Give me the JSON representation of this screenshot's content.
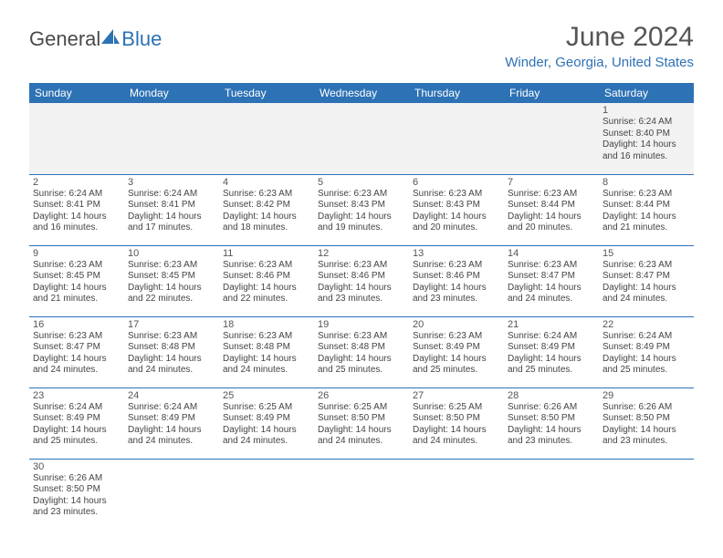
{
  "logo": {
    "part1": "General",
    "part2": "Blue"
  },
  "title": "June 2024",
  "location": "Winder, Georgia, United States",
  "colors": {
    "header_bg": "#2d72b5",
    "header_fg": "#ffffff",
    "accent": "#2d72b5",
    "grid_border": "#2d72b5",
    "first_row_bg": "#f2f2f2",
    "text": "#444444"
  },
  "weekdays": [
    "Sunday",
    "Monday",
    "Tuesday",
    "Wednesday",
    "Thursday",
    "Friday",
    "Saturday"
  ],
  "days": {
    "1": {
      "sr": "6:24 AM",
      "ss": "8:40 PM",
      "dl": "14 hours and 16 minutes."
    },
    "2": {
      "sr": "6:24 AM",
      "ss": "8:41 PM",
      "dl": "14 hours and 16 minutes."
    },
    "3": {
      "sr": "6:24 AM",
      "ss": "8:41 PM",
      "dl": "14 hours and 17 minutes."
    },
    "4": {
      "sr": "6:23 AM",
      "ss": "8:42 PM",
      "dl": "14 hours and 18 minutes."
    },
    "5": {
      "sr": "6:23 AM",
      "ss": "8:43 PM",
      "dl": "14 hours and 19 minutes."
    },
    "6": {
      "sr": "6:23 AM",
      "ss": "8:43 PM",
      "dl": "14 hours and 20 minutes."
    },
    "7": {
      "sr": "6:23 AM",
      "ss": "8:44 PM",
      "dl": "14 hours and 20 minutes."
    },
    "8": {
      "sr": "6:23 AM",
      "ss": "8:44 PM",
      "dl": "14 hours and 21 minutes."
    },
    "9": {
      "sr": "6:23 AM",
      "ss": "8:45 PM",
      "dl": "14 hours and 21 minutes."
    },
    "10": {
      "sr": "6:23 AM",
      "ss": "8:45 PM",
      "dl": "14 hours and 22 minutes."
    },
    "11": {
      "sr": "6:23 AM",
      "ss": "8:46 PM",
      "dl": "14 hours and 22 minutes."
    },
    "12": {
      "sr": "6:23 AM",
      "ss": "8:46 PM",
      "dl": "14 hours and 23 minutes."
    },
    "13": {
      "sr": "6:23 AM",
      "ss": "8:46 PM",
      "dl": "14 hours and 23 minutes."
    },
    "14": {
      "sr": "6:23 AM",
      "ss": "8:47 PM",
      "dl": "14 hours and 24 minutes."
    },
    "15": {
      "sr": "6:23 AM",
      "ss": "8:47 PM",
      "dl": "14 hours and 24 minutes."
    },
    "16": {
      "sr": "6:23 AM",
      "ss": "8:47 PM",
      "dl": "14 hours and 24 minutes."
    },
    "17": {
      "sr": "6:23 AM",
      "ss": "8:48 PM",
      "dl": "14 hours and 24 minutes."
    },
    "18": {
      "sr": "6:23 AM",
      "ss": "8:48 PM",
      "dl": "14 hours and 24 minutes."
    },
    "19": {
      "sr": "6:23 AM",
      "ss": "8:48 PM",
      "dl": "14 hours and 25 minutes."
    },
    "20": {
      "sr": "6:23 AM",
      "ss": "8:49 PM",
      "dl": "14 hours and 25 minutes."
    },
    "21": {
      "sr": "6:24 AM",
      "ss": "8:49 PM",
      "dl": "14 hours and 25 minutes."
    },
    "22": {
      "sr": "6:24 AM",
      "ss": "8:49 PM",
      "dl": "14 hours and 25 minutes."
    },
    "23": {
      "sr": "6:24 AM",
      "ss": "8:49 PM",
      "dl": "14 hours and 25 minutes."
    },
    "24": {
      "sr": "6:24 AM",
      "ss": "8:49 PM",
      "dl": "14 hours and 24 minutes."
    },
    "25": {
      "sr": "6:25 AM",
      "ss": "8:49 PM",
      "dl": "14 hours and 24 minutes."
    },
    "26": {
      "sr": "6:25 AM",
      "ss": "8:50 PM",
      "dl": "14 hours and 24 minutes."
    },
    "27": {
      "sr": "6:25 AM",
      "ss": "8:50 PM",
      "dl": "14 hours and 24 minutes."
    },
    "28": {
      "sr": "6:26 AM",
      "ss": "8:50 PM",
      "dl": "14 hours and 23 minutes."
    },
    "29": {
      "sr": "6:26 AM",
      "ss": "8:50 PM",
      "dl": "14 hours and 23 minutes."
    },
    "30": {
      "sr": "6:26 AM",
      "ss": "8:50 PM",
      "dl": "14 hours and 23 minutes."
    }
  },
  "labels": {
    "sunrise": "Sunrise: ",
    "sunset": "Sunset: ",
    "daylight": "Daylight: "
  },
  "grid": [
    [
      null,
      null,
      null,
      null,
      null,
      null,
      "1"
    ],
    [
      "2",
      "3",
      "4",
      "5",
      "6",
      "7",
      "8"
    ],
    [
      "9",
      "10",
      "11",
      "12",
      "13",
      "14",
      "15"
    ],
    [
      "16",
      "17",
      "18",
      "19",
      "20",
      "21",
      "22"
    ],
    [
      "23",
      "24",
      "25",
      "26",
      "27",
      "28",
      "29"
    ],
    [
      "30",
      null,
      null,
      null,
      null,
      null,
      null
    ]
  ]
}
